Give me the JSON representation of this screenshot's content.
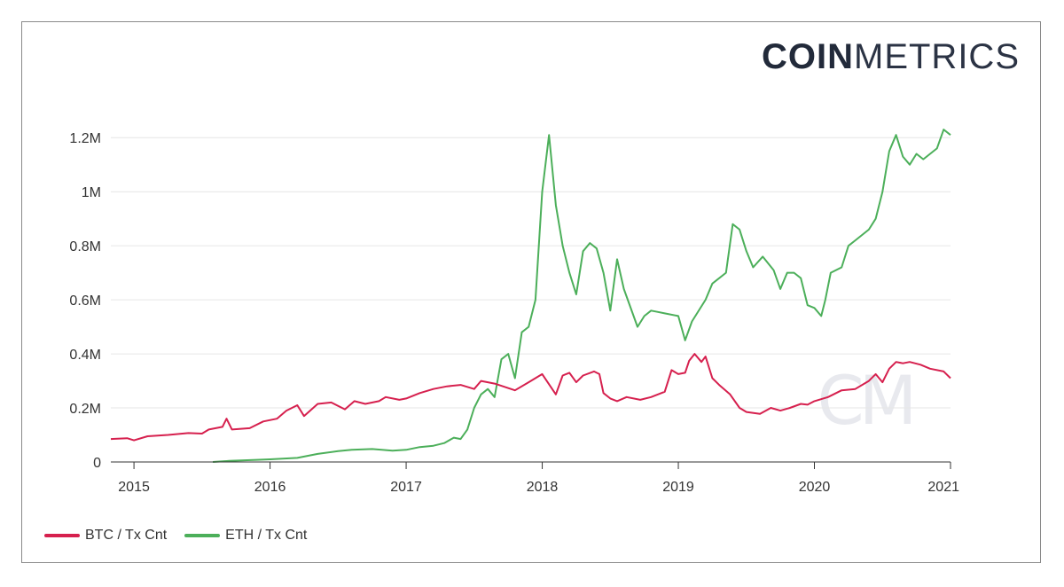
{
  "logo": {
    "bold": "COIN",
    "light": "METRICS"
  },
  "watermark": {
    "text": "CM"
  },
  "colors": {
    "btc": "#d6204e",
    "eth": "#4caf5a",
    "grid": "#e6e6e6",
    "axis": "#333333"
  },
  "chart_data": {
    "type": "line",
    "title": "",
    "xlabel": "",
    "ylabel": "",
    "xlim": [
      2014.83,
      2021.0
    ],
    "ylim": [
      0,
      1250000
    ],
    "x_ticks": [
      {
        "value": 2015,
        "label": "2015"
      },
      {
        "value": 2016,
        "label": "2016"
      },
      {
        "value": 2017,
        "label": "2017"
      },
      {
        "value": 2018,
        "label": "2018"
      },
      {
        "value": 2019,
        "label": "2019"
      },
      {
        "value": 2020,
        "label": "2020"
      },
      {
        "value": 2021,
        "label": "2021"
      }
    ],
    "y_ticks": [
      {
        "value": 0,
        "label": "0"
      },
      {
        "value": 200000,
        "label": "0.2M"
      },
      {
        "value": 400000,
        "label": "0.4M"
      },
      {
        "value": 600000,
        "label": "0.6M"
      },
      {
        "value": 800000,
        "label": "0.8M"
      },
      {
        "value": 1000000,
        "label": "1M"
      },
      {
        "value": 1200000,
        "label": "1.2M"
      }
    ],
    "legend_position": "bottom-left",
    "series": [
      {
        "name": "BTC / Tx Cnt",
        "color": "#d6204e",
        "points": [
          [
            2014.83,
            85000
          ],
          [
            2014.95,
            88000
          ],
          [
            2015.0,
            80000
          ],
          [
            2015.1,
            95000
          ],
          [
            2015.25,
            100000
          ],
          [
            2015.4,
            107000
          ],
          [
            2015.5,
            105000
          ],
          [
            2015.55,
            120000
          ],
          [
            2015.65,
            130000
          ],
          [
            2015.68,
            160000
          ],
          [
            2015.72,
            120000
          ],
          [
            2015.85,
            125000
          ],
          [
            2015.95,
            150000
          ],
          [
            2016.05,
            160000
          ],
          [
            2016.12,
            190000
          ],
          [
            2016.2,
            210000
          ],
          [
            2016.25,
            170000
          ],
          [
            2016.35,
            215000
          ],
          [
            2016.45,
            220000
          ],
          [
            2016.55,
            195000
          ],
          [
            2016.62,
            225000
          ],
          [
            2016.7,
            215000
          ],
          [
            2016.8,
            225000
          ],
          [
            2016.85,
            240000
          ],
          [
            2016.95,
            230000
          ],
          [
            2017.0,
            235000
          ],
          [
            2017.1,
            255000
          ],
          [
            2017.2,
            270000
          ],
          [
            2017.3,
            280000
          ],
          [
            2017.4,
            285000
          ],
          [
            2017.5,
            270000
          ],
          [
            2017.55,
            300000
          ],
          [
            2017.65,
            290000
          ],
          [
            2017.8,
            265000
          ],
          [
            2017.9,
            295000
          ],
          [
            2018.0,
            325000
          ],
          [
            2018.1,
            250000
          ],
          [
            2018.15,
            320000
          ],
          [
            2018.2,
            330000
          ],
          [
            2018.25,
            295000
          ],
          [
            2018.3,
            320000
          ],
          [
            2018.38,
            335000
          ],
          [
            2018.42,
            325000
          ],
          [
            2018.45,
            255000
          ],
          [
            2018.5,
            235000
          ],
          [
            2018.55,
            225000
          ],
          [
            2018.62,
            240000
          ],
          [
            2018.72,
            230000
          ],
          [
            2018.8,
            240000
          ],
          [
            2018.9,
            260000
          ],
          [
            2018.95,
            340000
          ],
          [
            2019.0,
            325000
          ],
          [
            2019.05,
            330000
          ],
          [
            2019.08,
            375000
          ],
          [
            2019.12,
            400000
          ],
          [
            2019.17,
            370000
          ],
          [
            2019.2,
            390000
          ],
          [
            2019.25,
            310000
          ],
          [
            2019.3,
            285000
          ],
          [
            2019.38,
            250000
          ],
          [
            2019.45,
            200000
          ],
          [
            2019.5,
            185000
          ],
          [
            2019.6,
            178000
          ],
          [
            2019.68,
            200000
          ],
          [
            2019.75,
            190000
          ],
          [
            2019.82,
            200000
          ],
          [
            2019.9,
            215000
          ],
          [
            2019.95,
            212000
          ],
          [
            2020.0,
            225000
          ],
          [
            2020.1,
            240000
          ],
          [
            2020.2,
            265000
          ],
          [
            2020.3,
            270000
          ],
          [
            2020.4,
            300000
          ],
          [
            2020.45,
            325000
          ],
          [
            2020.5,
            295000
          ],
          [
            2020.55,
            345000
          ],
          [
            2020.6,
            370000
          ],
          [
            2020.65,
            365000
          ],
          [
            2020.7,
            370000
          ],
          [
            2020.78,
            360000
          ],
          [
            2020.85,
            345000
          ],
          [
            2020.95,
            335000
          ],
          [
            2021.0,
            310000
          ]
        ]
      },
      {
        "name": "ETH / Tx Cnt",
        "color": "#4caf5a",
        "points": [
          [
            2015.58,
            0
          ],
          [
            2015.7,
            4000
          ],
          [
            2015.9,
            8000
          ],
          [
            2016.0,
            10000
          ],
          [
            2016.2,
            15000
          ],
          [
            2016.35,
            30000
          ],
          [
            2016.5,
            40000
          ],
          [
            2016.6,
            45000
          ],
          [
            2016.75,
            48000
          ],
          [
            2016.9,
            42000
          ],
          [
            2017.0,
            45000
          ],
          [
            2017.1,
            55000
          ],
          [
            2017.2,
            60000
          ],
          [
            2017.28,
            70000
          ],
          [
            2017.35,
            90000
          ],
          [
            2017.4,
            85000
          ],
          [
            2017.45,
            120000
          ],
          [
            2017.5,
            200000
          ],
          [
            2017.55,
            250000
          ],
          [
            2017.6,
            270000
          ],
          [
            2017.65,
            240000
          ],
          [
            2017.7,
            380000
          ],
          [
            2017.75,
            400000
          ],
          [
            2017.8,
            310000
          ],
          [
            2017.85,
            480000
          ],
          [
            2017.9,
            500000
          ],
          [
            2017.95,
            600000
          ],
          [
            2018.0,
            1000000
          ],
          [
            2018.05,
            1210000
          ],
          [
            2018.1,
            950000
          ],
          [
            2018.15,
            800000
          ],
          [
            2018.2,
            700000
          ],
          [
            2018.25,
            620000
          ],
          [
            2018.3,
            780000
          ],
          [
            2018.35,
            810000
          ],
          [
            2018.4,
            790000
          ],
          [
            2018.45,
            700000
          ],
          [
            2018.5,
            560000
          ],
          [
            2018.55,
            750000
          ],
          [
            2018.6,
            640000
          ],
          [
            2018.7,
            500000
          ],
          [
            2018.75,
            540000
          ],
          [
            2018.8,
            560000
          ],
          [
            2018.85,
            555000
          ],
          [
            2018.9,
            550000
          ],
          [
            2019.0,
            540000
          ],
          [
            2019.05,
            450000
          ],
          [
            2019.1,
            520000
          ],
          [
            2019.2,
            600000
          ],
          [
            2019.25,
            660000
          ],
          [
            2019.35,
            700000
          ],
          [
            2019.4,
            880000
          ],
          [
            2019.45,
            860000
          ],
          [
            2019.5,
            780000
          ],
          [
            2019.55,
            720000
          ],
          [
            2019.62,
            760000
          ],
          [
            2019.7,
            710000
          ],
          [
            2019.75,
            640000
          ],
          [
            2019.8,
            700000
          ],
          [
            2019.85,
            700000
          ],
          [
            2019.9,
            680000
          ],
          [
            2019.95,
            580000
          ],
          [
            2020.0,
            570000
          ],
          [
            2020.05,
            540000
          ],
          [
            2020.08,
            600000
          ],
          [
            2020.12,
            700000
          ],
          [
            2020.2,
            720000
          ],
          [
            2020.25,
            800000
          ],
          [
            2020.3,
            820000
          ],
          [
            2020.4,
            860000
          ],
          [
            2020.45,
            900000
          ],
          [
            2020.5,
            1000000
          ],
          [
            2020.55,
            1150000
          ],
          [
            2020.6,
            1210000
          ],
          [
            2020.65,
            1130000
          ],
          [
            2020.7,
            1100000
          ],
          [
            2020.75,
            1140000
          ],
          [
            2020.8,
            1120000
          ],
          [
            2020.85,
            1140000
          ],
          [
            2020.9,
            1160000
          ],
          [
            2020.95,
            1230000
          ],
          [
            2021.0,
            1210000
          ]
        ]
      }
    ]
  },
  "legend": {
    "items": [
      {
        "label": "BTC / Tx Cnt",
        "color": "#d6204e"
      },
      {
        "label": "ETH / Tx Cnt",
        "color": "#4caf5a"
      }
    ]
  }
}
